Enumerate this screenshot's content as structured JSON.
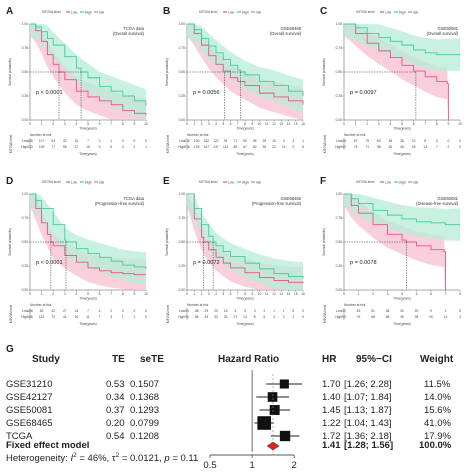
{
  "colors": {
    "low": "#e8557f",
    "high": "#3fcf98",
    "low_band": "#f7bfd0",
    "high_band": "#b5ecd7",
    "diamond": "#d62728",
    "axis": "#555555"
  },
  "chart_data": [
    {
      "panel": "A",
      "type": "line",
      "title": "TCGA data",
      "subtitle": "(Overall survival)",
      "legend_title": "KIF20A level",
      "legend": [
        "Low",
        "High",
        "risk"
      ],
      "xlabel": "Time(years)",
      "ylabel": "Survival probability",
      "xlim": [
        0,
        10
      ],
      "ylim": [
        0,
        1
      ],
      "xticks": [
        "0",
        "1",
        "2",
        "3",
        "4",
        "5",
        "6",
        "7",
        "8",
        "9",
        "10"
      ],
      "yticks": [
        "0.00",
        "0.25",
        "0.50",
        "0.75",
        "1.00"
      ],
      "pvalue": "p < 0.0001",
      "median_low": 2.5,
      "median_high": 4.4,
      "series": [
        {
          "name": "Low",
          "x": [
            0,
            0.5,
            1,
            1.5,
            2,
            2.5,
            3,
            4,
            5,
            6,
            7,
            8,
            9,
            10
          ],
          "y": [
            1,
            0.93,
            0.82,
            0.68,
            0.58,
            0.5,
            0.42,
            0.3,
            0.24,
            0.2,
            0.16,
            0.1,
            0.07,
            0.05
          ]
        },
        {
          "name": "High",
          "x": [
            0,
            0.5,
            1,
            1.5,
            2,
            3,
            4,
            4.4,
            5,
            6,
            7,
            8,
            9,
            10
          ],
          "y": [
            1,
            0.97,
            0.92,
            0.85,
            0.78,
            0.66,
            0.54,
            0.5,
            0.44,
            0.35,
            0.3,
            0.25,
            0.2,
            0.15
          ]
        }
      ],
      "risk_title": "Number at risk",
      "risk_ylabel": "KIF20A level",
      "risk_rows": [
        {
          "label": "Low",
          "values": [
            "188",
            "107",
            "63",
            "32",
            "15",
            "7",
            "3",
            "1",
            "0",
            "0",
            "0"
          ]
        },
        {
          "label": "High",
          "values": [
            "133",
            "109",
            "77",
            "56",
            "27",
            "15",
            "9",
            "5",
            "3",
            "2",
            "1"
          ]
        }
      ]
    },
    {
      "panel": "B",
      "type": "line",
      "title": "GSE68465",
      "subtitle": "(Overall survival)",
      "legend_title": "KIF20A level",
      "legend": [
        "Low",
        "High",
        "risk"
      ],
      "xlabel": "Time(years)",
      "ylabel": "Survival probability",
      "xlim": [
        0,
        16
      ],
      "ylim": [
        0,
        1
      ],
      "xticks": [
        "0",
        "1",
        "2",
        "3",
        "4",
        "5",
        "6",
        "7",
        "8",
        "9",
        "10",
        "11",
        "12",
        "13",
        "14",
        "15",
        "16"
      ],
      "yticks": [
        "0.00",
        "0.25",
        "0.50",
        "0.75",
        "1.00"
      ],
      "pvalue": "p = 0.0056",
      "median_low": 5.2,
      "median_high": 7.4,
      "series": [
        {
          "name": "Low",
          "x": [
            0,
            1,
            2,
            3,
            4,
            5,
            6,
            7,
            8,
            10,
            12,
            14,
            16
          ],
          "y": [
            1,
            0.9,
            0.78,
            0.67,
            0.58,
            0.51,
            0.44,
            0.4,
            0.36,
            0.28,
            0.24,
            0.2,
            0.16
          ]
        },
        {
          "name": "High",
          "x": [
            0,
            1,
            2,
            3,
            4,
            5,
            6,
            7,
            7.4,
            8,
            10,
            12,
            14,
            16
          ],
          "y": [
            1,
            0.94,
            0.85,
            0.77,
            0.7,
            0.63,
            0.57,
            0.52,
            0.5,
            0.47,
            0.4,
            0.36,
            0.3,
            0.25
          ]
        }
      ],
      "risk_title": "Number at risk",
      "risk_ylabel": "KIF20A level",
      "risk_rows": [
        {
          "label": "Low",
          "values": [
            "218",
            "190",
            "152",
            "122",
            "91",
            "71",
            "55",
            "38",
            "28",
            "16",
            "9",
            "3",
            "1"
          ]
        },
        {
          "label": "High",
          "values": [
            "216",
            "193",
            "167",
            "137",
            "112",
            "85",
            "67",
            "50",
            "35",
            "22",
            "15",
            "9",
            "6"
          ]
        }
      ]
    },
    {
      "panel": "C",
      "type": "line",
      "title": "GSE50081",
      "subtitle": "(Overall survival)",
      "legend_title": "KIF20A level",
      "legend": [
        "Low",
        "High",
        "risk"
      ],
      "xlabel": "Time(years)",
      "ylabel": "Survival probability",
      "xlim": [
        0,
        10
      ],
      "ylim": [
        0,
        1
      ],
      "xticks": [
        "0",
        "1",
        "2",
        "3",
        "4",
        "5",
        "6",
        "7",
        "8",
        "9",
        "10"
      ],
      "yticks": [
        "0.00",
        "0.25",
        "0.50",
        "0.75",
        "1.00"
      ],
      "pvalue": "p = 0.0097",
      "median_low": 6.2,
      "median_high": null,
      "series": [
        {
          "name": "Low",
          "x": [
            0,
            1,
            2,
            3,
            4,
            5,
            6,
            7,
            8,
            8.9,
            9
          ],
          "y": [
            1,
            0.9,
            0.8,
            0.72,
            0.65,
            0.57,
            0.51,
            0.45,
            0.4,
            0.38,
            0.0
          ]
        },
        {
          "name": "High",
          "x": [
            0,
            1,
            2,
            3,
            4,
            5,
            6,
            7,
            8,
            10
          ],
          "y": [
            1,
            0.96,
            0.9,
            0.86,
            0.82,
            0.78,
            0.73,
            0.7,
            0.68,
            0.68
          ]
        }
      ],
      "risk_title": "Number at risk",
      "risk_ylabel": "KIF20A level",
      "risk_rows": [
        {
          "label": "Low",
          "values": [
            "101",
            "87",
            "79",
            "60",
            "48",
            "38",
            "23",
            "8",
            "3",
            "0",
            "0"
          ]
        },
        {
          "label": "High",
          "values": [
            "80",
            "76",
            "71",
            "58",
            "52",
            "46",
            "28",
            "13",
            "7",
            "2",
            "0"
          ]
        }
      ]
    },
    {
      "panel": "D",
      "type": "line",
      "title": "TCGA data",
      "subtitle": "(Progression-free survival)",
      "legend_title": "KIF20A level",
      "legend": [
        "Low",
        "High",
        "risk"
      ],
      "xlabel": "Time(years)",
      "ylabel": "Survival probability",
      "xlim": [
        0,
        10
      ],
      "ylim": [
        0,
        1
      ],
      "xticks": [
        "0",
        "1",
        "2",
        "3",
        "4",
        "5",
        "6",
        "7",
        "8",
        "9",
        "10"
      ],
      "yticks": [
        "0.00",
        "0.25",
        "0.50",
        "0.75",
        "1.00"
      ],
      "pvalue": "p < 0.0001",
      "median_low": 1.8,
      "median_high": 3.1,
      "series": [
        {
          "name": "Low",
          "x": [
            0,
            0.5,
            1,
            1.5,
            1.8,
            2,
            3,
            4,
            5,
            6,
            7,
            8,
            9,
            10
          ],
          "y": [
            1,
            0.85,
            0.7,
            0.58,
            0.5,
            0.46,
            0.36,
            0.29,
            0.23,
            0.2,
            0.18,
            0.17,
            0.16,
            0.16
          ]
        },
        {
          "name": "High",
          "x": [
            0,
            0.5,
            1,
            2,
            3,
            3.1,
            4,
            5,
            6,
            7,
            8,
            9,
            10
          ],
          "y": [
            1,
            0.93,
            0.85,
            0.68,
            0.52,
            0.5,
            0.43,
            0.38,
            0.34,
            0.3,
            0.26,
            0.24,
            0.22
          ]
        }
      ],
      "risk_title": "Number at risk",
      "risk_ylabel": "KIF20A level",
      "risk_rows": [
        {
          "label": "Low",
          "values": [
            "166",
            "82",
            "42",
            "27",
            "13",
            "7",
            "4",
            "2",
            "0",
            "0",
            "0"
          ]
        },
        {
          "label": "High",
          "values": [
            "166",
            "123",
            "73",
            "41",
            "26",
            "11",
            "7",
            "3",
            "1",
            "1",
            "0"
          ]
        }
      ]
    },
    {
      "panel": "E",
      "type": "line",
      "title": "GSE68465",
      "subtitle": "(Progression-free survival)",
      "legend_title": "KIF20A level",
      "legend": [
        "Low",
        "High",
        "risk"
      ],
      "xlabel": "Time(years)",
      "ylabel": "Survival probability",
      "xlim": [
        0,
        16
      ],
      "ylim": [
        0,
        1
      ],
      "xticks": [
        "0",
        "1",
        "2",
        "3",
        "4",
        "5",
        "6",
        "7",
        "8",
        "9",
        "10",
        "11",
        "12",
        "13",
        "14",
        "15",
        "16"
      ],
      "yticks": [
        "0.00",
        "0.25",
        "0.50",
        "0.75",
        "1.00"
      ],
      "pvalue": "p = 0.0072",
      "median_low": 2.3,
      "median_high": 3.6,
      "series": [
        {
          "name": "Low",
          "x": [
            0,
            1,
            2,
            2.3,
            3,
            4,
            5,
            6,
            8,
            10,
            12,
            14,
            16
          ],
          "y": [
            1,
            0.74,
            0.55,
            0.5,
            0.42,
            0.34,
            0.28,
            0.23,
            0.18,
            0.13,
            0.1,
            0.08,
            0.07
          ]
        },
        {
          "name": "High",
          "x": [
            0,
            1,
            2,
            3,
            3.6,
            4,
            5,
            6,
            8,
            10,
            12,
            14,
            16
          ],
          "y": [
            1,
            0.85,
            0.68,
            0.56,
            0.5,
            0.46,
            0.4,
            0.35,
            0.28,
            0.22,
            0.17,
            0.14,
            0.12
          ]
        }
      ],
      "risk_title": "Number at risk",
      "risk_ylabel": "KIF20A level",
      "risk_rows": [
        {
          "label": "Low",
          "values": [
            "90",
            "38",
            "29",
            "20",
            "15",
            "9",
            "5",
            "3",
            "2",
            "1",
            "1",
            "0",
            "0"
          ]
        },
        {
          "label": "High",
          "values": [
            "90",
            "58",
            "43",
            "33",
            "25",
            "17",
            "13",
            "8",
            "5",
            "3",
            "2",
            "1",
            "0"
          ]
        }
      ]
    },
    {
      "panel": "F",
      "type": "line",
      "title": "GSE50081",
      "subtitle": "(Disease-free survival)",
      "legend_title": "KIF20A level",
      "legend": [
        "Low",
        "High",
        "risk"
      ],
      "xlabel": "Time(years)",
      "ylabel": "Survival probability",
      "xlim": [
        0,
        8
      ],
      "ylim": [
        0,
        1
      ],
      "xticks": [
        "0",
        "1",
        "2",
        "3",
        "4",
        "5",
        "6",
        "7",
        "8"
      ],
      "yticks": [
        "0.00",
        "0.25",
        "0.50",
        "0.75",
        "1.00"
      ],
      "pvalue": "p = 0.0078",
      "median_low": 4.3,
      "median_high": null,
      "series": [
        {
          "name": "Low",
          "x": [
            0,
            0.5,
            1,
            2,
            3,
            4,
            4.3,
            5,
            6,
            6.9,
            7
          ],
          "y": [
            1,
            0.88,
            0.8,
            0.68,
            0.58,
            0.52,
            0.5,
            0.46,
            0.42,
            0.4,
            0.0
          ]
        },
        {
          "name": "High",
          "x": [
            0,
            0.5,
            1,
            2,
            3,
            4,
            5,
            6,
            7,
            8
          ],
          "y": [
            1,
            0.95,
            0.9,
            0.83,
            0.78,
            0.74,
            0.71,
            0.7,
            0.68,
            0.68
          ]
        }
      ],
      "risk_title": "Number at risk",
      "risk_ylabel": "KIF20A level",
      "risk_rows": [
        {
          "label": "Low",
          "values": [
            "90",
            "63",
            "51",
            "38",
            "30",
            "20",
            "9",
            "2",
            "0"
          ]
        },
        {
          "label": "High",
          "values": [
            "90",
            "78",
            "68",
            "58",
            "49",
            "38",
            "26",
            "14",
            "3"
          ]
        }
      ]
    },
    {
      "panel": "G",
      "type": "forest",
      "headers": {
        "study": "Study",
        "te": "TE",
        "sete": "seTE",
        "hazard_ratio": "Hazard Ratio",
        "hr": "HR",
        "ci": "95%−CI",
        "weight": "Weight"
      },
      "studies": [
        {
          "name": "GSE31210",
          "te": "0.53",
          "sete": "0.1507",
          "hr": 1.7,
          "lo": 1.26,
          "hi": 2.28,
          "hr_text": "1.70",
          "ci_text": "[1.26; 2.28]",
          "weight": 11.5,
          "weight_text": "11.5%"
        },
        {
          "name": "GSE42127",
          "te": "0.34",
          "sete": "0.1368",
          "hr": 1.4,
          "lo": 1.07,
          "hi": 1.84,
          "hr_text": "1.40",
          "ci_text": "[1.07; 1.84]",
          "weight": 14.0,
          "weight_text": "14.0%"
        },
        {
          "name": "GSE50081",
          "te": "0.37",
          "sete": "0.1293",
          "hr": 1.45,
          "lo": 1.13,
          "hi": 1.87,
          "hr_text": "1.45",
          "ci_text": "[1.13; 1.87]",
          "weight": 15.6,
          "weight_text": "15.6%"
        },
        {
          "name": "GSE68465",
          "te": "0.20",
          "sete": "0.0799",
          "hr": 1.22,
          "lo": 1.04,
          "hi": 1.43,
          "hr_text": "1.22",
          "ci_text": "[1.04; 1.43]",
          "weight": 41.0,
          "weight_text": "41.0%"
        },
        {
          "name": "TCGA",
          "te": "0.54",
          "sete": "0.1208",
          "hr": 1.72,
          "lo": 1.36,
          "hi": 2.18,
          "hr_text": "1.72",
          "ci_text": "[1.36; 2.18]",
          "weight": 17.9,
          "weight_text": "17.9%"
        }
      ],
      "pooled": {
        "name": "Fixed effect model",
        "hr": 1.41,
        "lo": 1.28,
        "hi": 1.56,
        "hr_text": "1.41",
        "ci_text": "[1.28; 1.56]",
        "weight_text": "100.0%"
      },
      "heterogeneity": {
        "label": "Heterogeneity: ",
        "i2_sym": "I",
        "i2_eq": " = 46%, ",
        "tau_sym": "τ",
        "tau_eq": " = 0.0121, ",
        "p_sym": "p",
        "p_eq": " = 0.11"
      },
      "xscale": "log",
      "xticks": [
        0.5,
        1,
        2
      ],
      "xtick_labels": [
        "0.5",
        "1",
        "2"
      ]
    }
  ]
}
